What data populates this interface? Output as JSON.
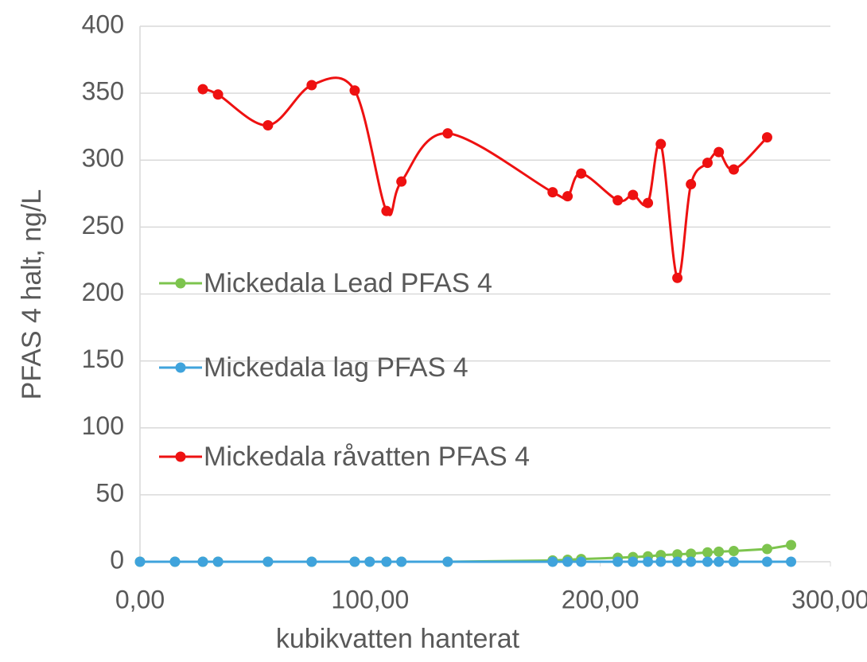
{
  "chart_data": {
    "type": "line",
    "x_label": "kubikvatten hanterat",
    "y_label": "PFAS 4 halt, ng/L",
    "xlim": [
      0,
      300
    ],
    "ylim": [
      0,
      400
    ],
    "xticks": [
      {
        "value": 0,
        "label": "0,00"
      },
      {
        "value": 100,
        "label": "100,00"
      },
      {
        "value": 200,
        "label": "200,00"
      },
      {
        "value": 300,
        "label": "300,00"
      }
    ],
    "yticks": [
      0,
      50,
      100,
      150,
      200,
      250,
      300,
      350,
      400
    ],
    "grid": true,
    "legend": "left",
    "series": [
      {
        "name": "Mickedala Lead PFAS 4",
        "color": "#7dc44e",
        "smooth": false,
        "x": [
          0,
          15.2,
          27.3,
          33.9,
          55.6,
          74.6,
          93.3,
          99.8,
          107.1,
          113.6,
          133.7,
          179.3,
          185.8,
          191.7,
          207.6,
          214.2,
          220.7,
          226.3,
          233.5,
          239.4,
          246.6,
          251.5,
          258.0,
          272.5,
          282.9
        ],
        "values": [
          0,
          0,
          0,
          0,
          0,
          0,
          0,
          0,
          0,
          0,
          0,
          1,
          1.5,
          2,
          3,
          3.5,
          4,
          5,
          5.5,
          6,
          7,
          7.5,
          8,
          9.5,
          12.5
        ]
      },
      {
        "name": "Mickedala lag PFAS 4",
        "color": "#3fa3dc",
        "smooth": false,
        "x": [
          0,
          15.2,
          27.3,
          33.9,
          55.6,
          74.6,
          93.3,
          99.8,
          107.1,
          113.6,
          133.7,
          179.3,
          185.8,
          191.7,
          207.6,
          214.2,
          220.7,
          226.3,
          233.5,
          239.4,
          246.6,
          251.5,
          258.0,
          272.5,
          282.9
        ],
        "values": [
          0,
          0,
          0,
          0,
          0,
          0,
          0,
          0,
          0,
          0,
          0,
          0,
          0,
          0,
          0,
          0,
          0,
          0,
          0,
          0,
          0,
          0,
          0,
          0,
          0
        ]
      },
      {
        "name": "Mickedala råvatten PFAS 4",
        "color": "#ee1111",
        "smooth": true,
        "x": [
          27.3,
          33.9,
          55.6,
          74.6,
          93.3,
          107.1,
          113.6,
          133.7,
          179.3,
          185.8,
          191.7,
          207.6,
          214.2,
          220.7,
          226.3,
          233.5,
          239.4,
          246.6,
          251.5,
          258.0,
          272.5
        ],
        "values": [
          353,
          349,
          326,
          356,
          352,
          262,
          284,
          320,
          276,
          273,
          290,
          270,
          274,
          268,
          312,
          212,
          282,
          298,
          306,
          293,
          317
        ]
      }
    ]
  }
}
